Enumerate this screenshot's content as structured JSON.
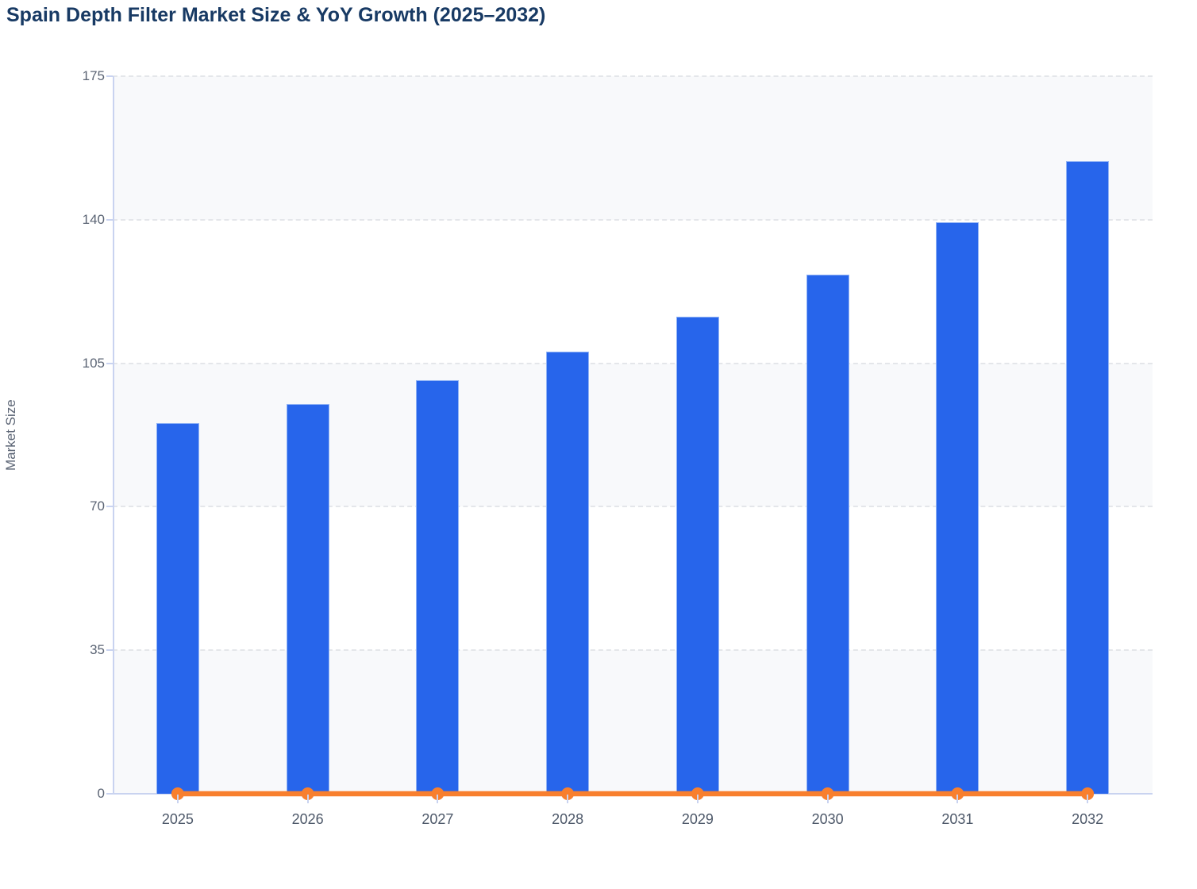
{
  "header": {
    "title": "Spain Depth Filter Market Size & YoY Growth (2025–2032)"
  },
  "colors": {
    "bar_blue": "#2765eb",
    "bar_border": "#a5c1f7",
    "line_orange": "#f87f2e",
    "title_navy": "#183a64",
    "band_gray": "#f8f9fb",
    "grid_gray": "#e4e6ea",
    "axis_lavender": "#c9d3f0",
    "y_tick_text": "#5c6575",
    "x_tick_text": "#4d5869"
  },
  "chart_data": {
    "type": "bar",
    "title": "Spain Depth Filter Market Size & YoY Growth (2025–2032)",
    "xlabel": "",
    "ylabel": "Market Size",
    "categories": [
      "2025",
      "2026",
      "2027",
      "2028",
      "2029",
      "2030",
      "2031",
      "2032"
    ],
    "series": [
      {
        "name": "Market Size",
        "type": "bar",
        "color": "#2765eb",
        "values": [
          90.4,
          95.0,
          100.9,
          107.8,
          116.3,
          126.7,
          139.3,
          154.3
        ]
      },
      {
        "name": "YoY Growth",
        "type": "line",
        "color": "#f87f2e",
        "values": [
          0,
          0,
          0,
          0,
          0,
          0,
          0,
          0
        ]
      }
    ],
    "ylim": [
      0,
      175
    ],
    "yticks": [
      0,
      35,
      70,
      105,
      140,
      175
    ],
    "grid": "horizontal-dashed",
    "legend_position": "none",
    "plot_background": "alternating-gray-white-bands-from-top"
  }
}
